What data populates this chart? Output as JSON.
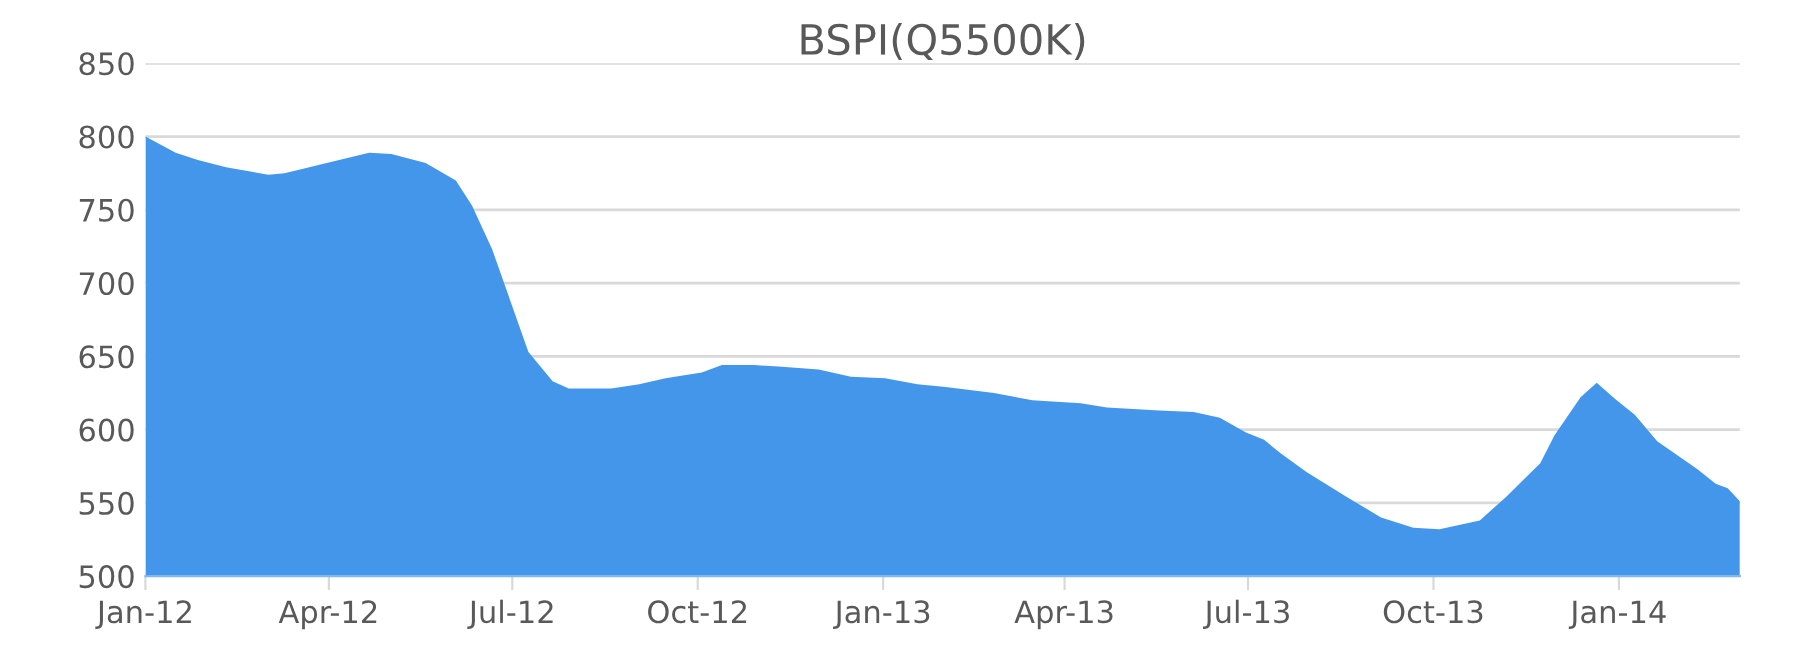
{
  "chart_data": {
    "type": "area",
    "title": "BSPI(Q5500K)",
    "x": [
      "2012-01-01",
      "2012-01-16",
      "2012-01-27",
      "2012-02-10",
      "2012-03-02",
      "2012-03-10",
      "2012-04-03",
      "2012-04-21",
      "2012-05-02",
      "2012-05-19",
      "2012-06-03",
      "2012-06-11",
      "2012-06-21",
      "2012-07-09",
      "2012-07-21",
      "2012-07-29",
      "2012-08-19",
      "2012-09-02",
      "2012-09-15",
      "2012-10-03",
      "2012-10-13",
      "2012-10-29",
      "2012-11-10",
      "2012-11-30",
      "2012-12-16",
      "2013-01-02",
      "2013-01-18",
      "2013-02-01",
      "2013-02-25",
      "2013-03-16",
      "2013-04-09",
      "2013-04-22",
      "2013-05-18",
      "2013-06-04",
      "2013-06-17",
      "2013-06-30",
      "2013-07-09",
      "2013-07-17",
      "2013-07-30",
      "2013-08-19",
      "2013-09-05",
      "2013-09-21",
      "2013-10-04",
      "2013-10-24",
      "2013-11-06",
      "2013-11-23",
      "2013-11-30",
      "2013-12-13",
      "2013-12-21",
      "2013-12-30",
      "2014-01-09",
      "2014-01-20",
      "2014-02-09",
      "2014-02-18",
      "2014-02-24",
      "2014-03-02"
    ],
    "series": [
      {
        "color": "#4496ea",
        "values": [
          800,
          789,
          784,
          779,
          774,
          775,
          783,
          789,
          788,
          782,
          770,
          753,
          723,
          653,
          633,
          628,
          628,
          631,
          635,
          639,
          644,
          644,
          643,
          641,
          636,
          635,
          631,
          629,
          625,
          620,
          618,
          615,
          613,
          612,
          608,
          598,
          593,
          584,
          571,
          554,
          540,
          533,
          532,
          538,
          554,
          577,
          596,
          622,
          632,
          621,
          610,
          592,
          573,
          563,
          560,
          551
        ]
      }
    ],
    "xlim": [
      "2012-01-01",
      "2014-03-02"
    ],
    "xticks": [
      {
        "value": "2012-01-01",
        "label": "Jan-12"
      },
      {
        "value": "2012-04-01",
        "label": "Apr-12"
      },
      {
        "value": "2012-07-01",
        "label": "Jul-12"
      },
      {
        "value": "2012-10-01",
        "label": "Oct-12"
      },
      {
        "value": "2013-01-01",
        "label": "Jan-13"
      },
      {
        "value": "2013-04-01",
        "label": "Apr-13"
      },
      {
        "value": "2013-07-01",
        "label": "Jul-13"
      },
      {
        "value": "2013-10-01",
        "label": "Oct-13"
      },
      {
        "value": "2014-01-01",
        "label": "Jan-14"
      }
    ],
    "ylim": [
      500,
      850
    ],
    "yticks": [
      500,
      550,
      600,
      650,
      700,
      750,
      800,
      850
    ],
    "grid": "y"
  }
}
